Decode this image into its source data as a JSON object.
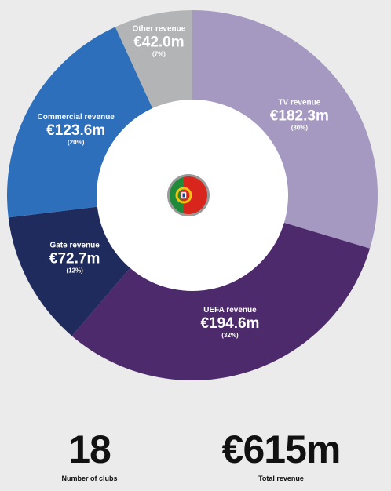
{
  "chart_data": {
    "type": "donut",
    "currency_symbol": "€",
    "slices": [
      {
        "name": "TV revenue",
        "value": 182.3,
        "value_label": "€182.3m",
        "percent_label": "(30%)",
        "color": "#a599c2"
      },
      {
        "name": "UEFA revenue",
        "value": 194.6,
        "value_label": "€194.6m",
        "percent_label": "(32%)",
        "color": "#4d2a6b"
      },
      {
        "name": "Gate revenue",
        "value": 72.7,
        "value_label": "€72.7m",
        "percent_label": "(12%)",
        "color": "#1f2b5c"
      },
      {
        "name": "Commercial revenue",
        "value": 123.6,
        "value_label": "€123.6m",
        "percent_label": "(20%)",
        "color": "#2e6fbc"
      },
      {
        "name": "Other revenue",
        "value": 42.0,
        "value_label": "€42.0m",
        "percent_label": "(7%)",
        "color": "#b2b4b6"
      }
    ],
    "start": "12 o'clock",
    "direction": "clockwise"
  },
  "center_icon": "portugal-flag-icon",
  "colors": {
    "background": "#ebebeb",
    "flag_green": "#1f8a3a",
    "flag_red": "#d9261c",
    "flag_emblem": "#f1c40f"
  },
  "stats": {
    "clubs": {
      "value": "18",
      "label": "Number of clubs"
    },
    "revenue": {
      "value": "€615m",
      "label": "Total revenue"
    }
  }
}
